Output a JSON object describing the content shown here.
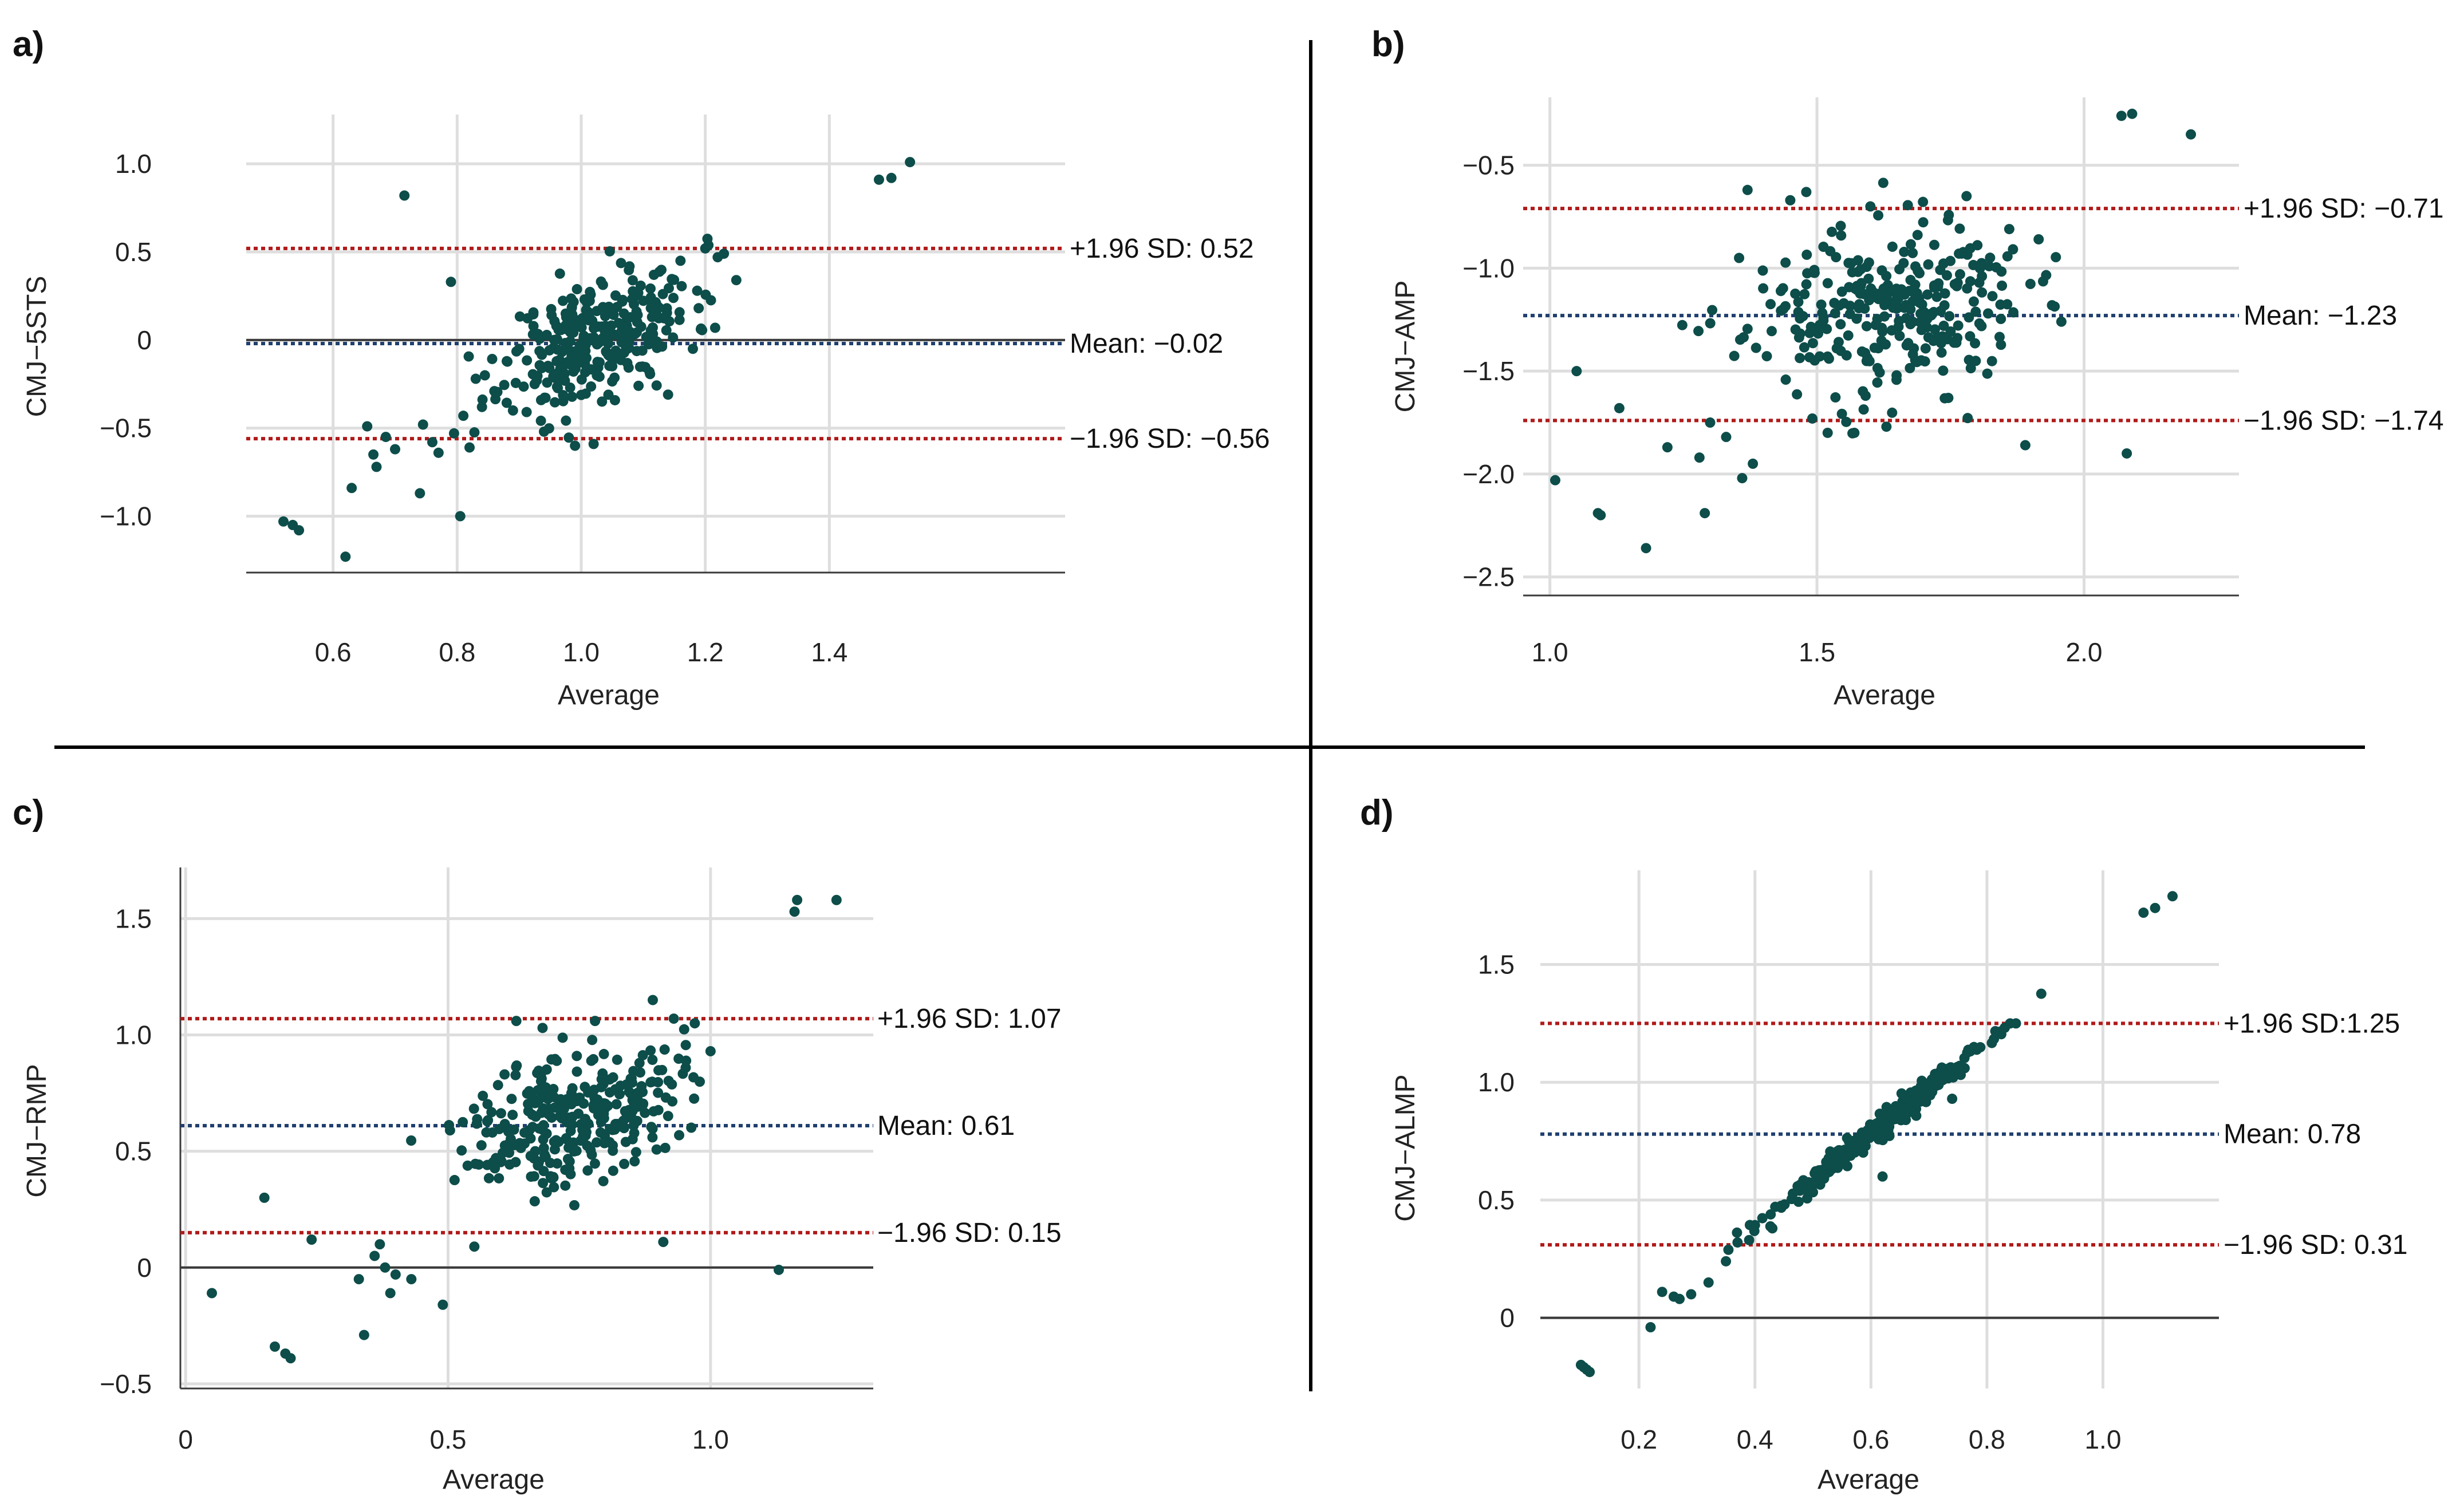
{
  "colors": {
    "point": "#0d4d4a",
    "sd_line": "#b01a1a",
    "mean_line": "#1f3f6e",
    "zero_line": "#3a3a3a",
    "grid": "#dedede",
    "divider": "#000000"
  },
  "chart_data": [
    {
      "id": "a",
      "panel_label": "a)",
      "type": "scatter",
      "title": "",
      "xlabel": "Average",
      "ylabel": "CMJ−5STS",
      "xlim": [
        0.46,
        1.78
      ],
      "ylim": [
        -1.32,
        1.28
      ],
      "xticks": [
        0.6,
        0.8,
        1.0,
        1.2,
        1.4
      ],
      "xtick_labels": [
        "0.6",
        "0.8",
        "1.0",
        "1.2",
        "1.4"
      ],
      "yticks": [
        -1.0,
        -0.5,
        0,
        0.5,
        1.0
      ],
      "ytick_labels": [
        "−1.0",
        "−0.5",
        "0",
        "0.5",
        "1.0"
      ],
      "zero_line": true,
      "lines": [
        {
          "kind": "upper",
          "value": 0.52,
          "label": "+1.96 SD: 0.52"
        },
        {
          "kind": "mean",
          "value": -0.02,
          "label": "Mean: −0.02"
        },
        {
          "kind": "lower",
          "value": -0.56,
          "label": "−1.96 SD: −0.56"
        }
      ],
      "points": [
        [
          0.52,
          -1.03
        ],
        [
          0.535,
          -1.05
        ],
        [
          0.545,
          -1.08
        ],
        [
          0.62,
          -1.23
        ],
        [
          0.63,
          -0.84
        ],
        [
          0.655,
          -0.49
        ],
        [
          0.665,
          -0.65
        ],
        [
          0.67,
          -0.72
        ],
        [
          0.685,
          -0.55
        ],
        [
          0.7,
          -0.62
        ],
        [
          0.715,
          0.82
        ],
        [
          0.74,
          -0.87
        ],
        [
          0.745,
          -0.48
        ],
        [
          0.76,
          -0.58
        ],
        [
          0.77,
          -0.64
        ],
        [
          0.79,
          0.33
        ],
        [
          0.805,
          -1.0
        ],
        [
          0.795,
          -0.53
        ],
        [
          0.81,
          -0.43
        ],
        [
          0.82,
          -0.61
        ],
        [
          0.84,
          -0.38
        ],
        [
          0.83,
          -0.22
        ],
        [
          0.86,
          -0.29
        ],
        [
          0.88,
          -0.12
        ],
        [
          0.89,
          -0.4
        ],
        [
          0.9,
          -0.05
        ],
        [
          0.925,
          -0.25
        ],
        [
          0.94,
          -0.52
        ],
        [
          0.96,
          0.08
        ],
        [
          0.975,
          0.15
        ],
        [
          0.99,
          -0.6
        ],
        [
          1.02,
          -0.59
        ],
        [
          1.11,
          -0.18
        ],
        [
          1.14,
          -0.31
        ],
        [
          1.16,
          0.45
        ],
        [
          1.2,
          0.52
        ],
        [
          1.22,
          0.47
        ],
        [
          1.23,
          0.49
        ],
        [
          1.25,
          0.34
        ],
        [
          1.18,
          -0.05
        ],
        [
          1.48,
          0.91
        ],
        [
          1.5,
          0.92
        ],
        [
          1.53,
          1.01
        ]
      ],
      "cluster": {
        "seed": 11,
        "n": 300,
        "cx": 1.03,
        "cy": 0.02,
        "sx": 0.075,
        "sy": 0.17,
        "slope": 1.25
      }
    },
    {
      "id": "b",
      "panel_label": "b)",
      "type": "scatter",
      "title": "",
      "xlabel": "Average",
      "ylabel": "CMJ−AMP",
      "xlim": [
        0.95,
        2.29
      ],
      "ylim": [
        -2.59,
        -0.17
      ],
      "xticks": [
        1.0,
        1.5,
        2.0
      ],
      "xtick_labels": [
        "1.0",
        "1.5",
        "2.0"
      ],
      "yticks": [
        -2.5,
        -2.0,
        -1.5,
        -1.0,
        -0.5
      ],
      "ytick_labels": [
        "−2.5",
        "−2.0",
        "−1.5",
        "−1.0",
        "−0.5"
      ],
      "zero_line": false,
      "lines": [
        {
          "kind": "upper",
          "value": -0.71,
          "label": "+1.96 SD: −0.71"
        },
        {
          "kind": "mean",
          "value": -1.23,
          "label": "Mean: −1.23"
        },
        {
          "kind": "lower",
          "value": -1.74,
          "label": "−1.96 SD: −1.74"
        }
      ],
      "points": [
        [
          1.01,
          -2.03
        ],
        [
          1.05,
          -1.5
        ],
        [
          1.09,
          -2.19
        ],
        [
          1.095,
          -2.2
        ],
        [
          1.13,
          -1.68
        ],
        [
          1.18,
          -2.36
        ],
        [
          1.22,
          -1.87
        ],
        [
          1.28,
          -1.92
        ],
        [
          1.29,
          -2.19
        ],
        [
          1.3,
          -1.75
        ],
        [
          1.33,
          -1.82
        ],
        [
          1.36,
          -2.02
        ],
        [
          1.38,
          -1.95
        ],
        [
          1.37,
          -0.62
        ],
        [
          1.45,
          -0.67
        ],
        [
          1.48,
          -0.63
        ],
        [
          1.6,
          -0.7
        ],
        [
          1.78,
          -0.65
        ],
        [
          1.86,
          -0.81
        ],
        [
          1.89,
          -1.86
        ],
        [
          1.94,
          -1.18
        ],
        [
          2.07,
          -0.26
        ],
        [
          2.09,
          -0.25
        ],
        [
          2.08,
          -1.9
        ],
        [
          2.2,
          -0.35
        ],
        [
          1.52,
          -1.8
        ],
        [
          1.57,
          -1.8
        ],
        [
          1.63,
          -1.77
        ]
      ],
      "cluster": {
        "seed": 23,
        "n": 300,
        "cx": 1.63,
        "cy": -1.2,
        "sx": 0.13,
        "sy": 0.2,
        "slope": 0.15
      }
    },
    {
      "id": "c",
      "panel_label": "c)",
      "type": "scatter",
      "title": "",
      "xlabel": "Average",
      "ylabel": "CMJ−RMP",
      "xlim": [
        -0.01,
        1.31
      ],
      "ylim": [
        -0.52,
        1.72
      ],
      "xticks": [
        0,
        0.5,
        1.0
      ],
      "xtick_labels": [
        "0",
        "0.5",
        "1.0"
      ],
      "yticks": [
        -0.5,
        0,
        0.5,
        1.0,
        1.5
      ],
      "ytick_labels": [
        "−0.5",
        "0",
        "0.5",
        "1.0",
        "1.5"
      ],
      "zero_line": true,
      "lines": [
        {
          "kind": "upper",
          "value": 1.07,
          "label": "+1.96 SD: 1.07"
        },
        {
          "kind": "mean",
          "value": 0.61,
          "label": "Mean: 0.61"
        },
        {
          "kind": "lower",
          "value": 0.15,
          "label": "−1.96 SD: 0.15"
        }
      ],
      "points": [
        [
          0.05,
          -0.11
        ],
        [
          0.15,
          0.3
        ],
        [
          0.17,
          -0.34
        ],
        [
          0.19,
          -0.37
        ],
        [
          0.2,
          -0.39
        ],
        [
          0.24,
          0.12
        ],
        [
          0.33,
          -0.05
        ],
        [
          0.34,
          -0.29
        ],
        [
          0.36,
          0.05
        ],
        [
          0.37,
          0.1
        ],
        [
          0.38,
          0.0
        ],
        [
          0.39,
          -0.11
        ],
        [
          0.4,
          -0.03
        ],
        [
          0.43,
          -0.05
        ],
        [
          0.49,
          -0.16
        ],
        [
          0.55,
          0.09
        ],
        [
          0.91,
          0.11
        ],
        [
          1.13,
          -0.01
        ],
        [
          1.16,
          1.53
        ],
        [
          1.165,
          1.58
        ],
        [
          1.24,
          1.58
        ],
        [
          0.89,
          1.15
        ],
        [
          0.93,
          1.07
        ],
        [
          0.97,
          1.05
        ],
        [
          1.0,
          0.93
        ],
        [
          0.63,
          1.06
        ],
        [
          0.68,
          1.03
        ],
        [
          0.78,
          1.06
        ]
      ],
      "cluster": {
        "seed": 37,
        "n": 300,
        "cx": 0.74,
        "cy": 0.66,
        "sx": 0.1,
        "sy": 0.14,
        "slope": 0.55
      }
    },
    {
      "id": "d",
      "panel_label": "d)",
      "type": "scatter",
      "title": "",
      "xlabel": "Average",
      "ylabel": "CMJ−ALMP",
      "xlim": [
        0.03,
        1.2
      ],
      "ylim": [
        -0.3,
        1.9
      ],
      "xticks": [
        0.2,
        0.4,
        0.6,
        0.8,
        1.0
      ],
      "xtick_labels": [
        "0.2",
        "0.4",
        "0.6",
        "0.8",
        "1.0"
      ],
      "yticks": [
        0,
        0.5,
        1.0,
        1.5
      ],
      "ytick_labels": [
        "0",
        "0.5",
        "1.0",
        "1.5"
      ],
      "zero_line": true,
      "lines": [
        {
          "kind": "upper",
          "value": 1.25,
          "label": "+1.96 SD:1.25"
        },
        {
          "kind": "mean",
          "value": 0.78,
          "label": "Mean: 0.78"
        },
        {
          "kind": "lower",
          "value": 0.31,
          "label": "−1.96 SD: 0.31"
        }
      ],
      "points": [
        [
          0.1,
          -0.2
        ],
        [
          0.105,
          -0.21
        ],
        [
          0.11,
          -0.22
        ],
        [
          0.115,
          -0.23
        ],
        [
          0.22,
          -0.04
        ],
        [
          0.24,
          0.11
        ],
        [
          0.26,
          0.09
        ],
        [
          0.27,
          0.08
        ],
        [
          0.29,
          0.1
        ],
        [
          0.32,
          0.15
        ],
        [
          0.35,
          0.24
        ],
        [
          0.37,
          0.32
        ],
        [
          0.39,
          0.33
        ],
        [
          0.43,
          0.38
        ],
        [
          0.62,
          0.6
        ],
        [
          0.66,
          0.84
        ],
        [
          0.74,
          0.93
        ],
        [
          0.84,
          1.25
        ],
        [
          0.85,
          1.25
        ],
        [
          1.07,
          1.72
        ],
        [
          1.09,
          1.74
        ],
        [
          1.12,
          1.79
        ]
      ],
      "cluster": {
        "seed": 53,
        "n": 300,
        "cx": 0.62,
        "cy": 0.82,
        "sx": 0.1,
        "sy": 0.025,
        "slope": 1.95
      }
    }
  ]
}
